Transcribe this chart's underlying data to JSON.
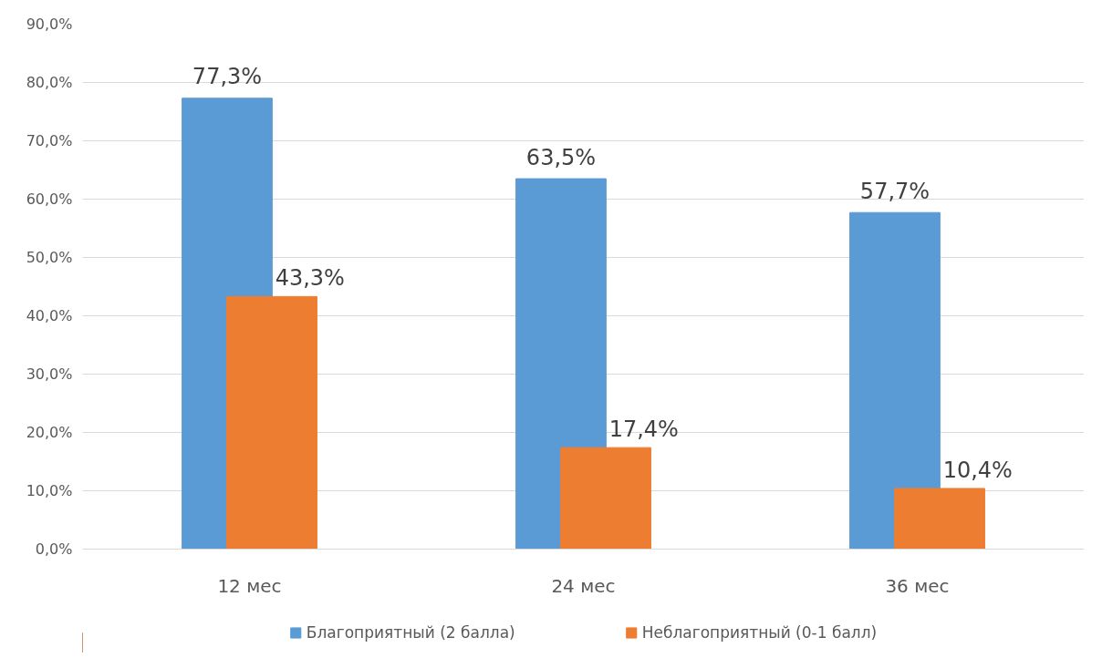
{
  "chart_data": {
    "type": "bar",
    "categories": [
      "12 мес",
      "24 мес",
      "36 мес"
    ],
    "series": [
      {
        "name": "Благоприятный (2 балла)",
        "color": "#5b9bd5",
        "values": [
          77.3,
          63.5,
          57.7
        ],
        "value_labels": [
          "77,3%",
          "63,5%",
          "57,7%"
        ]
      },
      {
        "name": "Неблагоприятный (0-1 балл)",
        "color": "#ed7d31",
        "values": [
          43.3,
          17.4,
          10.4
        ],
        "value_labels": [
          "43,3%",
          "17,4%",
          "10,4%"
        ]
      }
    ],
    "ylim": [
      0,
      90
    ],
    "yticks": [
      {
        "value": 0,
        "label": "0,0%"
      },
      {
        "value": 10,
        "label": "10,0%"
      },
      {
        "value": 20,
        "label": "20,0%"
      },
      {
        "value": 30,
        "label": "30,0%"
      },
      {
        "value": 40,
        "label": "40,0%"
      },
      {
        "value": 50,
        "label": "50,0%"
      },
      {
        "value": 60,
        "label": "60,0%"
      },
      {
        "value": 70,
        "label": "70,0%"
      },
      {
        "value": 80,
        "label": "80,0%"
      },
      {
        "value": 90,
        "label": "90,0%"
      }
    ],
    "grid": "y",
    "legend": "bottom"
  }
}
